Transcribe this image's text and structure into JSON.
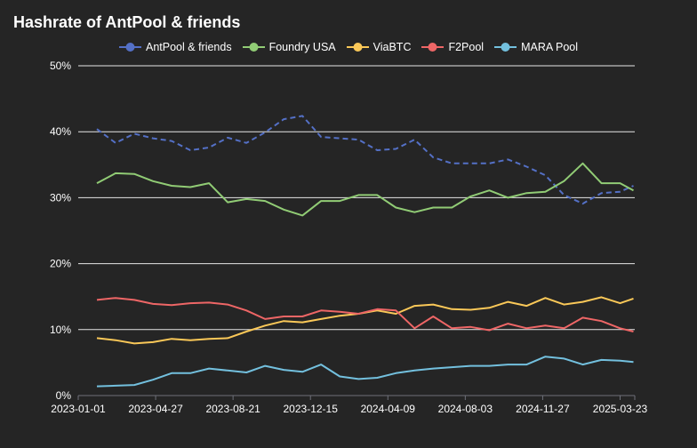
{
  "chart_data": {
    "type": "line",
    "title": "Hashrate of AntPool & friends",
    "xlabel": "",
    "ylabel": "",
    "ylim": [
      0,
      50
    ],
    "y_ticks": [
      "0%",
      "10%",
      "20%",
      "30%",
      "40%",
      "50%"
    ],
    "x_ticks": [
      "2023-01-01",
      "2023-04-27",
      "2023-08-21",
      "2023-12-15",
      "2024-04-09",
      "2024-08-03",
      "2024-11-27",
      "2025-03-23"
    ],
    "x_range": [
      "2023-01-01",
      "2025-04-14"
    ],
    "grid": true,
    "legend_position": "top-center",
    "x": [
      "2023-01-29",
      "2023-02-26",
      "2023-03-26",
      "2023-04-23",
      "2023-05-21",
      "2023-06-18",
      "2023-07-16",
      "2023-08-13",
      "2023-09-10",
      "2023-10-08",
      "2023-11-05",
      "2023-12-03",
      "2023-12-31",
      "2024-01-28",
      "2024-02-25",
      "2024-03-24",
      "2024-04-21",
      "2024-05-19",
      "2024-06-16",
      "2024-07-14",
      "2024-08-11",
      "2024-09-08",
      "2024-10-06",
      "2024-11-03",
      "2024-12-01",
      "2024-12-29",
      "2025-01-26",
      "2025-02-23",
      "2025-03-23",
      "2025-04-12"
    ],
    "series": [
      {
        "name": "AntPool & friends",
        "color": "#5470c6",
        "dashed": true,
        "values": [
          40.4,
          38.3,
          39.7,
          39.0,
          38.6,
          37.2,
          37.6,
          39.1,
          38.3,
          39.9,
          41.9,
          42.4,
          39.2,
          39.0,
          38.8,
          37.2,
          37.4,
          38.8,
          36.1,
          35.2,
          35.2,
          35.2,
          35.8,
          34.7,
          33.4,
          30.4,
          29.1,
          30.7,
          30.9,
          31.8
        ]
      },
      {
        "name": "Foundry USA",
        "color": "#91cc75",
        "dashed": false,
        "values": [
          32.2,
          33.7,
          33.6,
          32.5,
          31.8,
          31.6,
          32.2,
          29.3,
          29.8,
          29.5,
          28.2,
          27.3,
          29.5,
          29.5,
          30.4,
          30.4,
          28.5,
          27.8,
          28.5,
          28.5,
          30.2,
          31.1,
          30.0,
          30.7,
          30.9,
          32.5,
          35.2,
          32.2,
          32.2,
          31.1
        ]
      },
      {
        "name": "ViaBTC",
        "color": "#fac858",
        "dashed": false,
        "values": [
          8.7,
          8.4,
          7.9,
          8.1,
          8.6,
          8.4,
          8.6,
          8.7,
          9.7,
          10.6,
          11.3,
          11.1,
          11.6,
          12.1,
          12.4,
          12.9,
          12.4,
          13.6,
          13.8,
          13.1,
          13.0,
          13.3,
          14.2,
          13.6,
          14.8,
          13.8,
          14.2,
          14.9,
          14.0,
          14.7
        ]
      },
      {
        "name": "F2Pool",
        "color": "#ee6666",
        "dashed": false,
        "values": [
          14.5,
          14.8,
          14.5,
          13.9,
          13.7,
          14.0,
          14.1,
          13.8,
          12.9,
          11.6,
          12.0,
          12.0,
          12.9,
          12.7,
          12.4,
          13.1,
          12.9,
          10.2,
          12.0,
          10.2,
          10.4,
          9.9,
          10.9,
          10.2,
          10.6,
          10.2,
          11.8,
          11.3,
          10.2,
          9.7
        ]
      },
      {
        "name": "MARA Pool",
        "color": "#73c0de",
        "dashed": false,
        "values": [
          1.4,
          1.5,
          1.6,
          2.4,
          3.4,
          3.4,
          4.1,
          3.8,
          3.5,
          4.5,
          3.9,
          3.6,
          4.7,
          2.9,
          2.5,
          2.7,
          3.4,
          3.8,
          4.1,
          4.3,
          4.5,
          4.5,
          4.7,
          4.7,
          5.9,
          5.6,
          4.7,
          5.4,
          5.3,
          5.1
        ]
      }
    ]
  },
  "colors": {
    "background": "#252525",
    "grid": "#e6e6e6",
    "text": "#ffffff"
  }
}
